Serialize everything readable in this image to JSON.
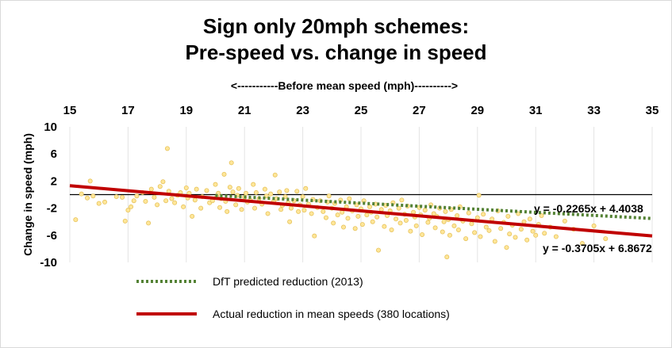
{
  "chart_data": {
    "type": "scatter",
    "title": [
      "Sign only 20mph schemes:",
      "Pre-speed vs. change in speed"
    ],
    "xlabel": "<-----------Before mean speed (mph)---------->",
    "ylabel": "Change in speed (mph)",
    "xlim": [
      15,
      35
    ],
    "ylim": [
      -10,
      10
    ],
    "xticks": [
      15,
      17,
      19,
      21,
      23,
      25,
      27,
      29,
      31,
      33,
      35
    ],
    "yticks": [
      10,
      6,
      2,
      -2,
      -6,
      -10
    ],
    "x_axis_position": "top",
    "colors": {
      "points_fill": "#ffe699",
      "points_stroke": "#e6c35c",
      "actual_line": "#c00000",
      "dft_line": "#548235",
      "zero_line": "#000000"
    },
    "series": [
      {
        "name": "DfT predicted reduction (2013)",
        "kind": "trendline",
        "style": "dotted",
        "slope": -0.2265,
        "intercept": 4.4038,
        "x_range": [
          20,
          35
        ],
        "equation": "y = -0.2265x + 4.4038"
      },
      {
        "name": "Actual reduction in mean speeds (380 locations)",
        "kind": "trendline",
        "style": "solid",
        "slope": -0.3705,
        "intercept": 6.8672,
        "x_range": [
          15,
          35
        ],
        "equation": "y = -0.3705x + 6.8672"
      }
    ],
    "scatter_points": [
      [
        15.2,
        -3.7
      ],
      [
        15.4,
        0.1
      ],
      [
        15.6,
        -0.5
      ],
      [
        15.8,
        -0.2
      ],
      [
        15.7,
        2.0
      ],
      [
        16.0,
        -1.3
      ],
      [
        16.2,
        -1.1
      ],
      [
        16.6,
        -0.3
      ],
      [
        16.8,
        -0.4
      ],
      [
        16.9,
        -3.9
      ],
      [
        17.0,
        -2.3
      ],
      [
        17.1,
        -1.8
      ],
      [
        17.2,
        -0.9
      ],
      [
        17.3,
        -0.2
      ],
      [
        17.5,
        0.3
      ],
      [
        17.6,
        -1.0
      ],
      [
        17.7,
        -4.2
      ],
      [
        17.8,
        0.8
      ],
      [
        17.9,
        -0.4
      ],
      [
        18.0,
        -1.5
      ],
      [
        18.1,
        1.2
      ],
      [
        18.2,
        1.9
      ],
      [
        18.3,
        -0.9
      ],
      [
        18.35,
        6.8
      ],
      [
        18.4,
        0.5
      ],
      [
        18.5,
        -0.6
      ],
      [
        18.6,
        -1.2
      ],
      [
        18.7,
        -0.1
      ],
      [
        18.8,
        0.3
      ],
      [
        18.9,
        -1.8
      ],
      [
        19.0,
        1.0
      ],
      [
        19.05,
        -0.5
      ],
      [
        19.1,
        0.2
      ],
      [
        19.2,
        -3.2
      ],
      [
        19.3,
        -0.8
      ],
      [
        19.35,
        0.8
      ],
      [
        19.5,
        -2.0
      ],
      [
        19.55,
        -0.3
      ],
      [
        19.7,
        0.6
      ],
      [
        19.8,
        -1.2
      ],
      [
        19.9,
        -0.9
      ],
      [
        20.0,
        1.5
      ],
      [
        20.05,
        -0.3
      ],
      [
        20.1,
        0.2
      ],
      [
        20.15,
        -1.9
      ],
      [
        20.2,
        -0.6
      ],
      [
        20.3,
        3.0
      ],
      [
        20.35,
        -1.0
      ],
      [
        20.4,
        -2.5
      ],
      [
        20.5,
        1.1
      ],
      [
        20.55,
        4.7
      ],
      [
        20.6,
        0.4
      ],
      [
        20.7,
        -1.5
      ],
      [
        20.75,
        -0.1
      ],
      [
        20.8,
        0.9
      ],
      [
        20.9,
        -2.2
      ],
      [
        21.0,
        -0.4
      ],
      [
        21.05,
        0.2
      ],
      [
        21.1,
        -1.1
      ],
      [
        21.2,
        -0.8
      ],
      [
        21.3,
        1.5
      ],
      [
        21.35,
        -2.0
      ],
      [
        21.4,
        0.3
      ],
      [
        21.5,
        -0.6
      ],
      [
        21.6,
        -1.4
      ],
      [
        21.7,
        0.8
      ],
      [
        21.75,
        -0.2
      ],
      [
        21.8,
        -2.8
      ],
      [
        21.9,
        0.1
      ],
      [
        22.0,
        -1.0
      ],
      [
        22.05,
        2.9
      ],
      [
        22.1,
        -0.6
      ],
      [
        22.2,
        0.4
      ],
      [
        22.25,
        -2.2
      ],
      [
        22.3,
        -1.6
      ],
      [
        22.4,
        -0.3
      ],
      [
        22.45,
        0.6
      ],
      [
        22.5,
        -1.2
      ],
      [
        22.55,
        -4.0
      ],
      [
        22.6,
        -2.0
      ],
      [
        22.7,
        -0.9
      ],
      [
        22.8,
        0.5
      ],
      [
        22.85,
        -2.5
      ],
      [
        22.9,
        -1.5
      ],
      [
        23.0,
        -0.3
      ],
      [
        23.05,
        -2.3
      ],
      [
        23.1,
        0.9
      ],
      [
        23.2,
        -1.4
      ],
      [
        23.3,
        -2.8
      ],
      [
        23.35,
        -0.7
      ],
      [
        23.4,
        -6.1
      ],
      [
        23.5,
        -1.9
      ],
      [
        23.6,
        -0.9
      ],
      [
        23.7,
        -2.5
      ],
      [
        23.8,
        -3.4
      ],
      [
        23.85,
        -1.1
      ],
      [
        23.9,
        -0.2
      ],
      [
        24.0,
        -2.0
      ],
      [
        24.05,
        -4.2
      ],
      [
        24.1,
        -1.3
      ],
      [
        24.2,
        -3.0
      ],
      [
        24.3,
        -0.8
      ],
      [
        24.35,
        -2.6
      ],
      [
        24.4,
        -4.8
      ],
      [
        24.5,
        -1.8
      ],
      [
        24.55,
        -3.5
      ],
      [
        24.6,
        -0.6
      ],
      [
        24.7,
        -2.4
      ],
      [
        24.8,
        -5.0
      ],
      [
        24.85,
        -1.5
      ],
      [
        24.9,
        -3.2
      ],
      [
        25.0,
        -2.1
      ],
      [
        25.05,
        -4.4
      ],
      [
        25.1,
        -0.9
      ],
      [
        25.2,
        -3.0
      ],
      [
        25.3,
        -1.8
      ],
      [
        25.35,
        -2.6
      ],
      [
        25.4,
        -4.0
      ],
      [
        25.5,
        -1.4
      ],
      [
        25.55,
        -3.3
      ],
      [
        25.6,
        -8.2
      ],
      [
        25.7,
        -2.2
      ],
      [
        25.8,
        -4.7
      ],
      [
        25.85,
        -1.6
      ],
      [
        25.9,
        -3.1
      ],
      [
        26.0,
        -2.4
      ],
      [
        26.05,
        -5.2
      ],
      [
        26.1,
        -1.2
      ],
      [
        26.2,
        -3.6
      ],
      [
        26.3,
        -2.0
      ],
      [
        26.35,
        -4.2
      ],
      [
        26.4,
        -0.8
      ],
      [
        26.5,
        -2.9
      ],
      [
        26.55,
        -3.8
      ],
      [
        26.6,
        -1.7
      ],
      [
        26.7,
        -5.4
      ],
      [
        26.8,
        -2.6
      ],
      [
        26.85,
        -3.3
      ],
      [
        26.9,
        -4.6
      ],
      [
        27.0,
        -1.9
      ],
      [
        27.05,
        -3.0
      ],
      [
        27.1,
        -5.9
      ],
      [
        27.2,
        -2.3
      ],
      [
        27.3,
        -4.1
      ],
      [
        27.35,
        -3.5
      ],
      [
        27.4,
        -1.5
      ],
      [
        27.5,
        -2.8
      ],
      [
        27.55,
        -4.9
      ],
      [
        27.6,
        -3.2
      ],
      [
        27.7,
        -2.0
      ],
      [
        27.8,
        -5.5
      ],
      [
        27.85,
        -4.0
      ],
      [
        27.9,
        -2.5
      ],
      [
        27.95,
        -9.2
      ],
      [
        28.0,
        -3.7
      ],
      [
        28.05,
        -6.0
      ],
      [
        28.1,
        -2.2
      ],
      [
        28.2,
        -4.6
      ],
      [
        28.3,
        -3.1
      ],
      [
        28.35,
        -5.2
      ],
      [
        28.4,
        -1.8
      ],
      [
        28.5,
        -3.9
      ],
      [
        28.6,
        -6.5
      ],
      [
        28.7,
        -2.7
      ],
      [
        28.8,
        -4.3
      ],
      [
        28.9,
        -5.6
      ],
      [
        29.0,
        -3.4
      ],
      [
        29.05,
        -0.1
      ],
      [
        29.1,
        -6.2
      ],
      [
        29.2,
        -2.9
      ],
      [
        29.3,
        -4.8
      ],
      [
        29.4,
        -5.3
      ],
      [
        29.5,
        -3.6
      ],
      [
        29.6,
        -6.9
      ],
      [
        29.7,
        -2.4
      ],
      [
        29.8,
        -5.0
      ],
      [
        29.9,
        -4.1
      ],
      [
        30.0,
        -7.8
      ],
      [
        30.05,
        -3.2
      ],
      [
        30.1,
        -5.8
      ],
      [
        30.2,
        -4.5
      ],
      [
        30.3,
        -6.3
      ],
      [
        30.4,
        -2.8
      ],
      [
        30.5,
        -5.1
      ],
      [
        30.6,
        -4.0
      ],
      [
        30.7,
        -6.7
      ],
      [
        30.8,
        -3.6
      ],
      [
        30.9,
        -5.4
      ],
      [
        31.0,
        -6.0
      ],
      [
        31.1,
        -4.4
      ],
      [
        31.2,
        -3.1
      ],
      [
        31.3,
        -5.7
      ],
      [
        31.5,
        -4.8
      ],
      [
        31.7,
        -6.2
      ],
      [
        32.0,
        -3.9
      ],
      [
        32.3,
        -5.1
      ],
      [
        32.6,
        -7.2
      ],
      [
        33.0,
        -4.6
      ],
      [
        33.4,
        -6.5
      ]
    ],
    "legend": {
      "position": "bottom",
      "items": [
        "DfT predicted reduction (2013)",
        "Actual reduction in mean speeds (380 locations)"
      ]
    }
  }
}
